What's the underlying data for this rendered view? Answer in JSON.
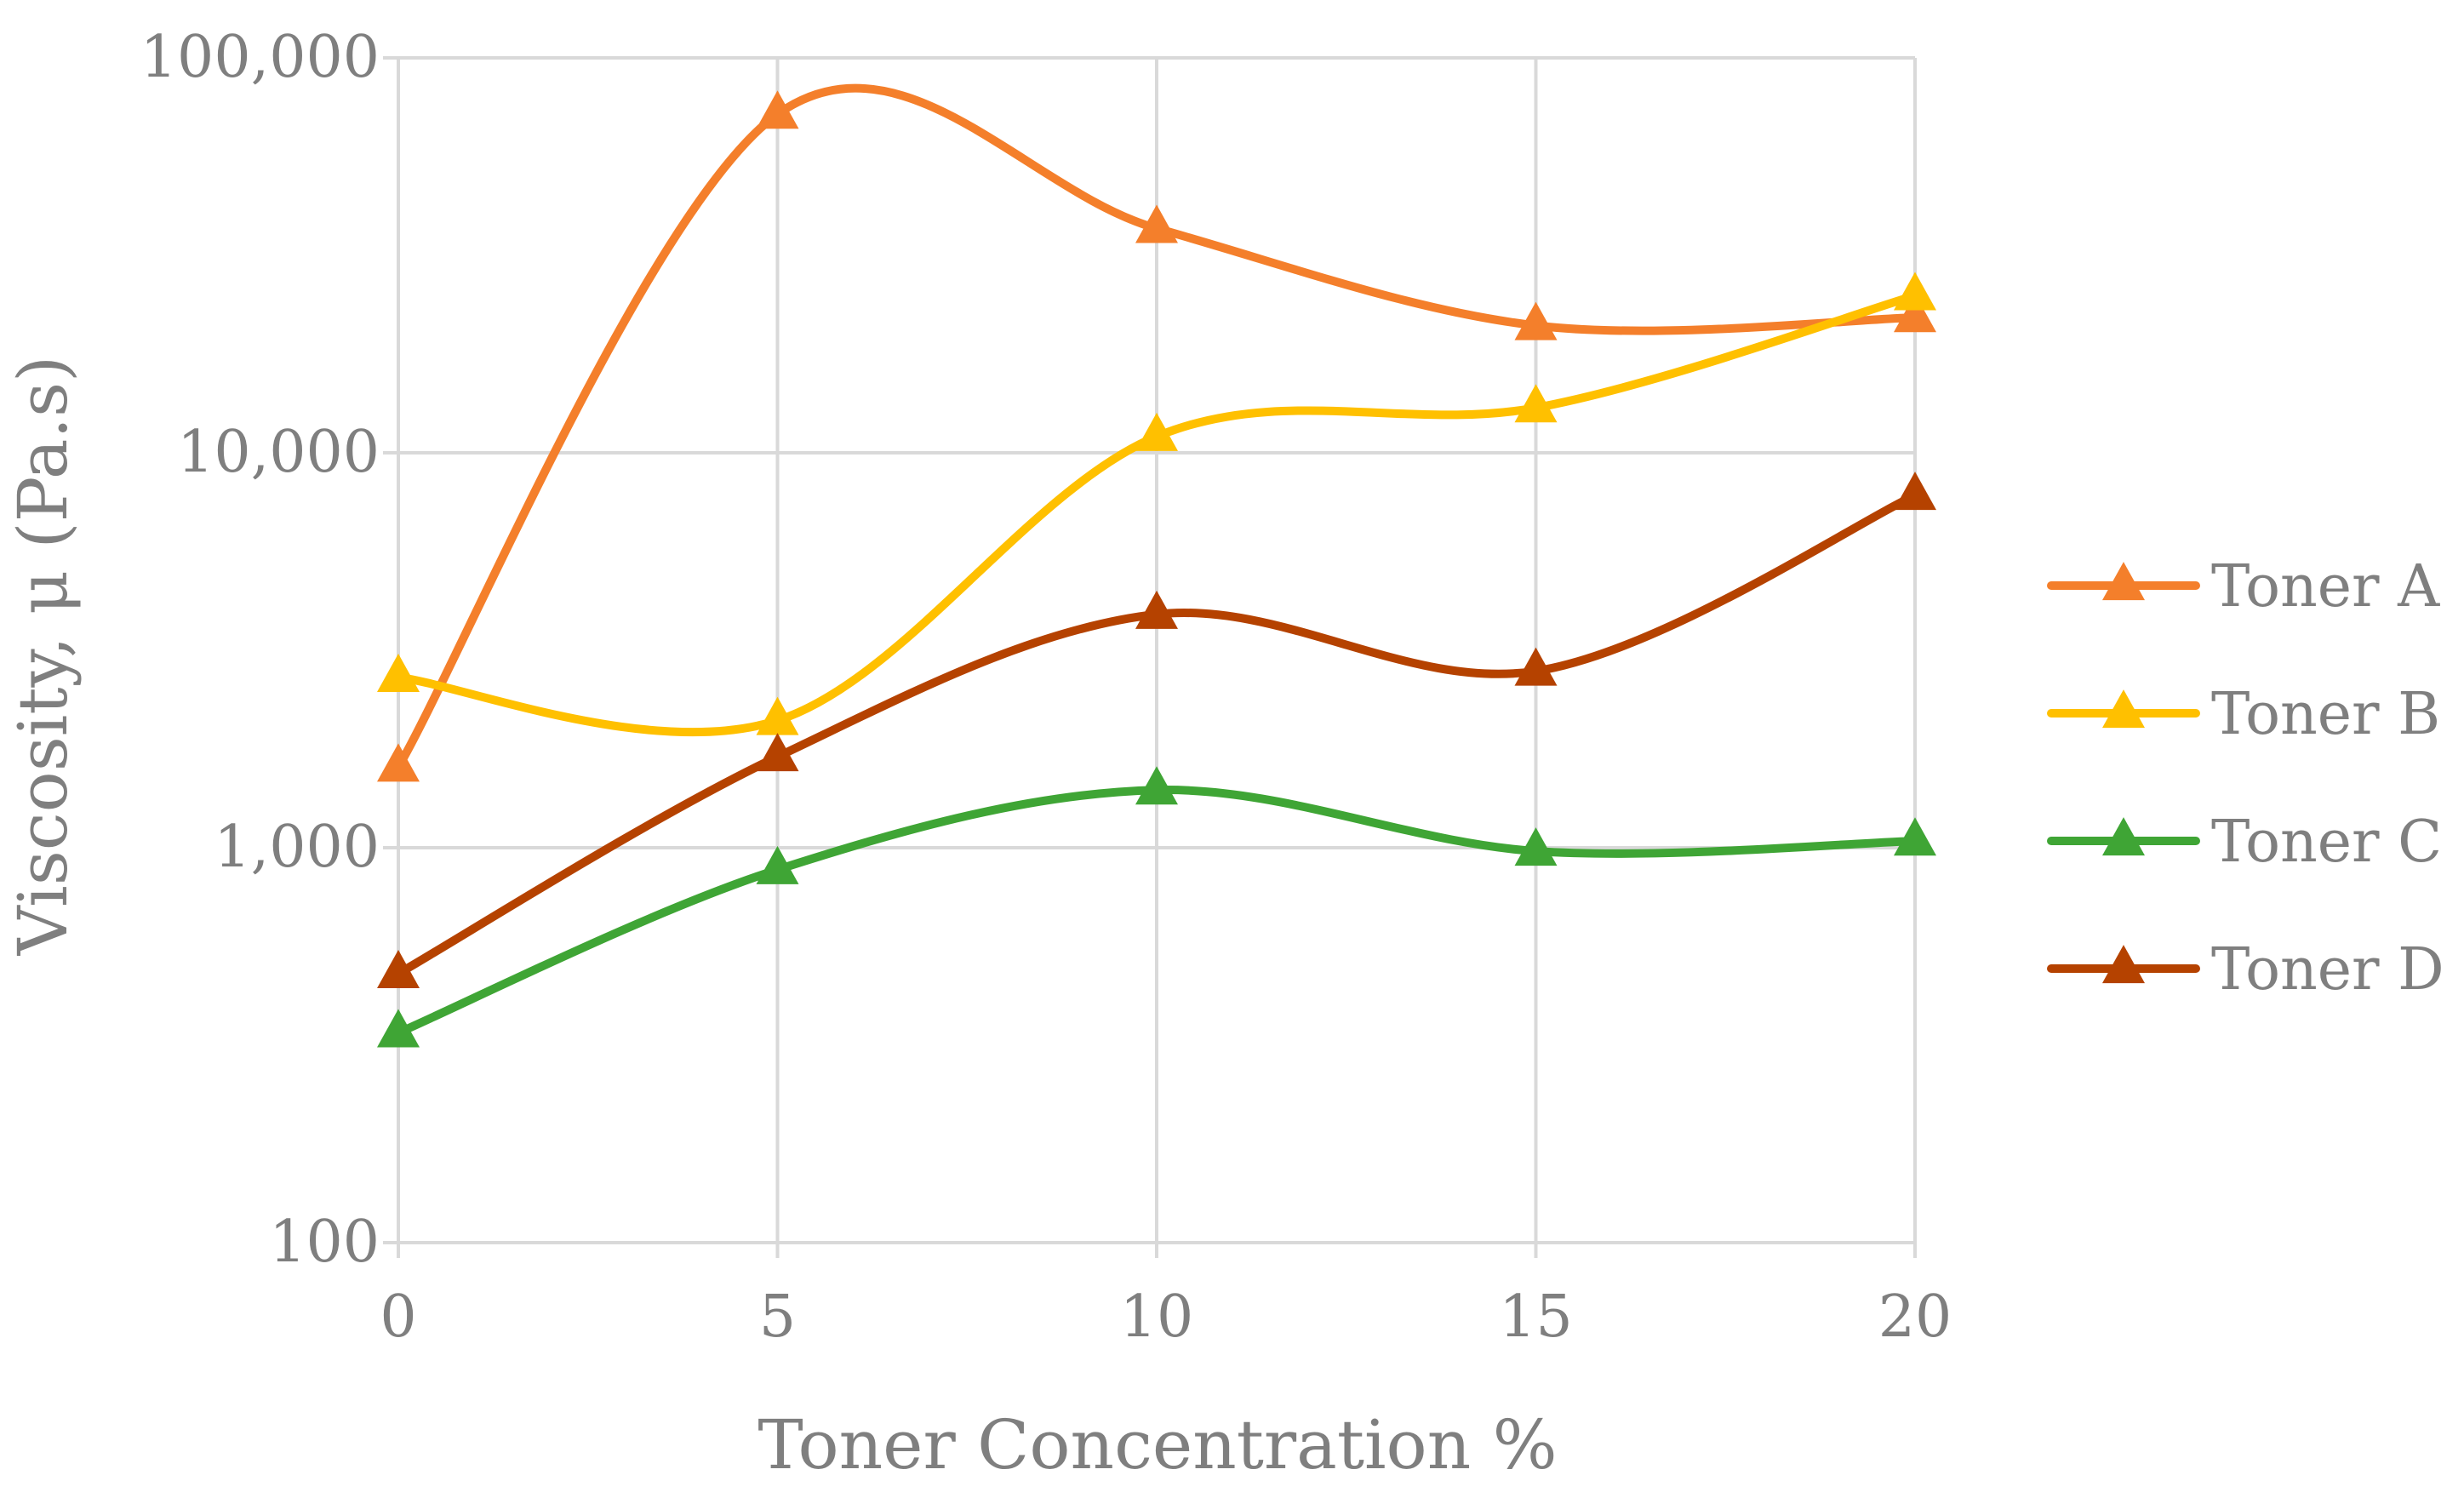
{
  "chart_data": {
    "type": "line",
    "title": "",
    "xlabel": "Toner Concentration %",
    "ylabel": "Viscosity, μ (Pa.s)",
    "x": [
      0,
      5,
      10,
      15,
      20
    ],
    "x_ticks": [
      "0",
      "5",
      "10",
      "15",
      "20"
    ],
    "xlim": [
      0,
      20
    ],
    "y_scale": "log",
    "ylim": [
      100,
      100000
    ],
    "y_ticks": [
      100,
      1000,
      10000,
      100000
    ],
    "y_tick_labels": [
      "100",
      "1,000",
      "10,000",
      "100,000"
    ],
    "grid": true,
    "smooth": true,
    "marker": "triangle",
    "legend": "right",
    "series": [
      {
        "name": "Toner A",
        "color": "#F47F2B",
        "values": [
          1600,
          72000,
          37000,
          21000,
          22000
        ]
      },
      {
        "name": "Toner B",
        "color": "#FFC000",
        "values": [
          2700,
          2100,
          11000,
          13000,
          25000
        ]
      },
      {
        "name": "Toner C",
        "color": "#3FA535",
        "values": [
          340,
          880,
          1400,
          980,
          1040
        ]
      },
      {
        "name": "Toner D",
        "color": "#B54200",
        "values": [
          480,
          1700,
          3900,
          2800,
          7800
        ]
      }
    ]
  }
}
